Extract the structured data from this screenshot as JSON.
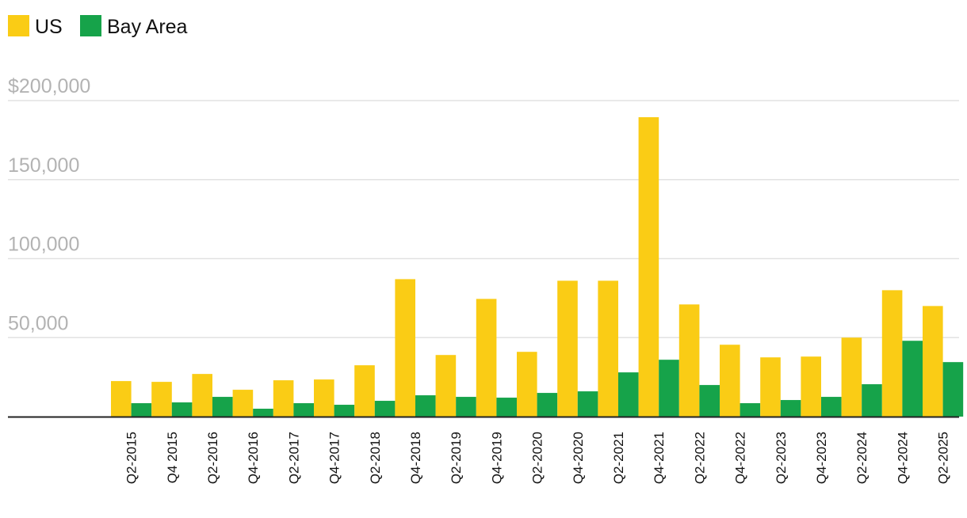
{
  "colors": {
    "us": "#FACC15",
    "bay_area": "#16A34A"
  },
  "chart_data": {
    "type": "bar",
    "categories": [
      "Q2-2015",
      "Q4 2015",
      "Q2-2016",
      "Q4-2016",
      "Q2-2017",
      "Q4-2017",
      "Q2-2018",
      "Q4-2018",
      "Q2-2019",
      "Q4-2019",
      "Q2-2020",
      "Q4-2020",
      "Q2-2021",
      "Q4-2021",
      "Q2-2022",
      "Q4-2022",
      "Q2-2023",
      "Q4-2023",
      "Q2-2024",
      "Q4-2024",
      "Q2-2025"
    ],
    "series": [
      {
        "name": "US",
        "values": [
          22500,
          22000,
          27000,
          17000,
          23000,
          23500,
          32500,
          87000,
          39000,
          74500,
          41000,
          86000,
          86000,
          189500,
          71000,
          45500,
          37500,
          38000,
          50000,
          80000,
          70000
        ]
      },
      {
        "name": "Bay Area",
        "values": [
          8500,
          9000,
          12500,
          5000,
          8500,
          7500,
          10000,
          13500,
          12500,
          12000,
          15000,
          16000,
          28000,
          36000,
          20000,
          8500,
          10500,
          12500,
          20500,
          48000,
          34500
        ]
      }
    ],
    "yticks": [
      {
        "value": 50000,
        "label": "50,000"
      },
      {
        "value": 100000,
        "label": "100,000"
      },
      {
        "value": 150000,
        "label": "150,000"
      },
      {
        "value": 200000,
        "label": "$200,000"
      }
    ],
    "ylim": [
      0,
      200000
    ],
    "grid": true,
    "legend_position": "top-left"
  }
}
